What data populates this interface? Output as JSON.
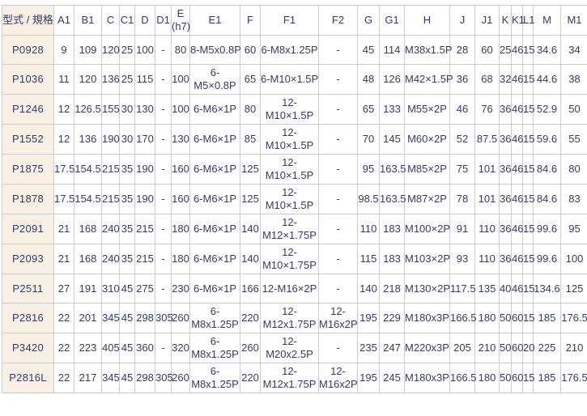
{
  "table": {
    "columns": [
      "型式 / 規格",
      "A1",
      "B1",
      "C",
      "C1",
      "D",
      "D1",
      "E\n(h7)",
      "E1",
      "F",
      "F1",
      "F2",
      "G",
      "G1",
      "H",
      "J",
      "J1",
      "K",
      "K1",
      "L1",
      "M",
      "M1"
    ],
    "rows": [
      {
        "model": "P0928",
        "values": [
          "9",
          "109",
          "120",
          "25",
          "100",
          "-",
          "80",
          "8-M5x0.8P",
          "60",
          "6-M8x1.25P",
          "-",
          "45",
          "114",
          "M38x1.5P",
          "28",
          "60",
          "25",
          "46",
          "15",
          "34.6",
          "34"
        ]
      },
      {
        "model": "P1036",
        "values": [
          "11",
          "120",
          "136",
          "25",
          "115",
          "-",
          "100",
          "6-\nM5×0.8P",
          "65",
          "6-M10×1.5P",
          "-",
          "48",
          "126",
          "M42×1.5P",
          "36",
          "68",
          "32",
          "46",
          "15",
          "44.6",
          "38"
        ]
      },
      {
        "model": "P1246",
        "values": [
          "12",
          "126.5",
          "155",
          "30",
          "130",
          "-",
          "100",
          "6-M6×1P",
          "80",
          "12-\nM10×1.5P",
          "-",
          "65",
          "133",
          "M55×2P",
          "46",
          "76",
          "36",
          "46",
          "15",
          "52.9",
          "50"
        ]
      },
      {
        "model": "P1552",
        "values": [
          "12",
          "136",
          "190",
          "30",
          "170",
          "-",
          "130",
          "6-M6×1P",
          "85",
          "12-\nM10×1.5P",
          "-",
          "70",
          "145",
          "M60×2P",
          "52",
          "87.5",
          "36",
          "46",
          "15",
          "59.6",
          "55"
        ]
      },
      {
        "model": "P1875",
        "values": [
          "17.5",
          "154.5",
          "215",
          "35",
          "190",
          "-",
          "160",
          "6-M6×1P",
          "125",
          "12-\nM10×1.5P",
          "-",
          "95",
          "163.5",
          "M85×2P",
          "75",
          "101",
          "36",
          "46",
          "15",
          "84.6",
          "80"
        ]
      },
      {
        "model": "P1878",
        "values": [
          "17.5",
          "154.5",
          "215",
          "35",
          "190",
          "-",
          "160",
          "6-M6×1P",
          "125",
          "12-\nM10×1.5P",
          "-",
          "98.5",
          "163.5",
          "M87×2P",
          "78",
          "101",
          "36",
          "46",
          "15",
          "84.6",
          "83"
        ]
      },
      {
        "model": "P2091",
        "values": [
          "21",
          "168",
          "240",
          "35",
          "215",
          "-",
          "180",
          "6-M6×1P",
          "140",
          "12-\nM12×1.75P",
          "-",
          "110",
          "183",
          "M100×2P",
          "91",
          "110",
          "36",
          "46",
          "15",
          "99.6",
          "95"
        ]
      },
      {
        "model": "P2093",
        "values": [
          "21",
          "168",
          "240",
          "35",
          "215",
          "-",
          "180",
          "6-M6×1P",
          "140",
          "12-\nM10×1.75P",
          "-",
          "115",
          "183",
          "M103×2P",
          "93",
          "110",
          "36",
          "46",
          "15",
          "99.6",
          "100"
        ]
      },
      {
        "model": "P2511",
        "values": [
          "27",
          "191",
          "310",
          "45",
          "275",
          "-",
          "230",
          "6-M6×1P",
          "166",
          "12-M16×2P",
          "-",
          "140",
          "218",
          "M130×2P",
          "117.5",
          "135",
          "40",
          "46",
          "15",
          "134.6",
          "125"
        ]
      },
      {
        "model": "P2816",
        "values": [
          "22",
          "201",
          "345",
          "45",
          "298",
          "305",
          "260",
          "6-\nM8x1.25P",
          "220",
          "12-\nM12x1.75P",
          "12-\nM16x2P",
          "195",
          "229",
          "M180x3P",
          "166.5",
          "180",
          "50",
          "60",
          "15",
          "185",
          "176.5"
        ]
      },
      {
        "model": "P3420",
        "values": [
          "22",
          "223",
          "405",
          "45",
          "360",
          "-",
          "320",
          "6-\nM8x1.25P",
          "260",
          "12-\nM20x2.5P",
          "-",
          "235",
          "247",
          "M220x3P",
          "205",
          "210",
          "50",
          "60",
          "20",
          "225",
          "210"
        ]
      },
      {
        "model": "P2816L",
        "values": [
          "22",
          "217",
          "345",
          "45",
          "298",
          "305",
          "260",
          "6-\nM8x1.25P",
          "220",
          "12-\nM12x1.75P",
          "12-\nM16x2P",
          "195",
          "245",
          "M180x3P",
          "166.5",
          "180",
          "50",
          "60",
          "15",
          "185",
          "176.5"
        ]
      }
    ]
  },
  "colors": {
    "model_column_bg": "#f8f1e3",
    "border": "#cbcbcb",
    "text": "#333a6b",
    "background": "#ffffff"
  }
}
